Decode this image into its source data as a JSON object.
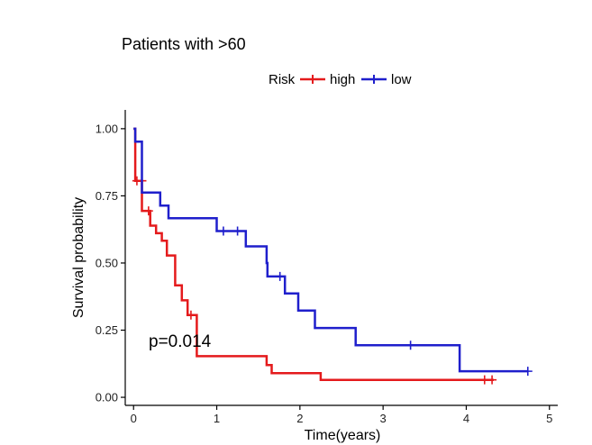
{
  "chart_data": {
    "type": "line",
    "subtype": "kaplan-meier",
    "title": "Patients with >60",
    "xlabel": "Time(years)",
    "ylabel": "Survival probability",
    "xlim": [
      -0.1,
      5.1
    ],
    "ylim": [
      -0.03,
      1.07
    ],
    "xticks": [
      0,
      1,
      2,
      3,
      4,
      5
    ],
    "xtick_labels": [
      "0",
      "1",
      "2",
      "3",
      "4",
      "5"
    ],
    "yticks": [
      0,
      0.25,
      0.5,
      0.75,
      1.0
    ],
    "ytick_labels": [
      "0.00",
      "0.25",
      "0.50",
      "0.75",
      "1.00"
    ],
    "legend": {
      "title": "Risk",
      "position": "top"
    },
    "annotation": "p=0.014",
    "series": [
      {
        "name": "high",
        "color": "#e41a1c",
        "steps": [
          [
            0,
            1.0
          ],
          [
            0.02,
            0.806
          ],
          [
            0.1,
            0.694
          ],
          [
            0.2,
            0.639
          ],
          [
            0.27,
            0.611
          ],
          [
            0.34,
            0.583
          ],
          [
            0.4,
            0.528
          ],
          [
            0.5,
            0.417
          ],
          [
            0.58,
            0.361
          ],
          [
            0.65,
            0.306
          ],
          [
            0.76,
            0.153
          ],
          [
            1.6,
            0.12
          ],
          [
            1.66,
            0.09
          ],
          [
            2.25,
            0.065
          ],
          [
            4.33,
            0.065
          ]
        ],
        "censored": [
          [
            0.04,
            0.806
          ],
          [
            0.1,
            0.806
          ],
          [
            0.18,
            0.694
          ],
          [
            0.69,
            0.306
          ],
          [
            4.22,
            0.065
          ],
          [
            4.31,
            0.065
          ]
        ]
      },
      {
        "name": "low",
        "color": "#1f1fcc",
        "steps": [
          [
            0,
            1.0
          ],
          [
            0.02,
            0.952
          ],
          [
            0.1,
            0.762
          ],
          [
            0.32,
            0.714
          ],
          [
            0.42,
            0.667
          ],
          [
            1.0,
            0.619
          ],
          [
            1.35,
            0.562
          ],
          [
            1.6,
            0.5
          ],
          [
            1.61,
            0.45
          ],
          [
            1.82,
            0.387
          ],
          [
            1.98,
            0.323
          ],
          [
            2.18,
            0.258
          ],
          [
            2.67,
            0.194
          ],
          [
            3.92,
            0.097
          ],
          [
            4.74,
            0.097
          ]
        ],
        "censored": [
          [
            1.08,
            0.619
          ],
          [
            1.25,
            0.619
          ],
          [
            1.76,
            0.45
          ],
          [
            3.33,
            0.194
          ],
          [
            4.74,
            0.097
          ]
        ]
      }
    ]
  }
}
